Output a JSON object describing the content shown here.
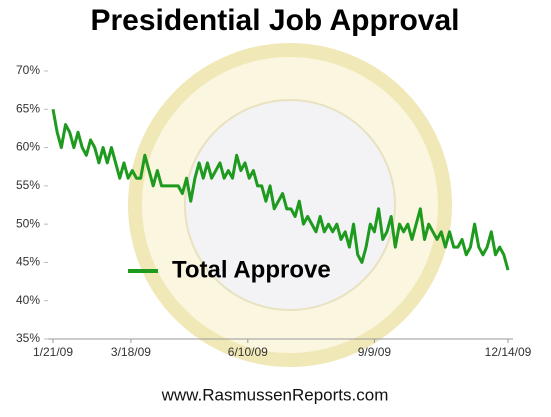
{
  "chart_data": {
    "type": "line",
    "title": "Presidential Job Approval",
    "footer": "www.RasmussenReports.com",
    "x": [
      "2009-01-21",
      "2009-01-24",
      "2009-01-27",
      "2009-01-30",
      "2009-02-02",
      "2009-02-05",
      "2009-02-08",
      "2009-02-11",
      "2009-02-14",
      "2009-02-17",
      "2009-02-20",
      "2009-02-23",
      "2009-02-26",
      "2009-03-01",
      "2009-03-04",
      "2009-03-07",
      "2009-03-10",
      "2009-03-13",
      "2009-03-16",
      "2009-03-19",
      "2009-03-22",
      "2009-03-25",
      "2009-03-28",
      "2009-03-31",
      "2009-04-03",
      "2009-04-06",
      "2009-04-09",
      "2009-04-12",
      "2009-04-15",
      "2009-04-18",
      "2009-04-21",
      "2009-04-24",
      "2009-04-27",
      "2009-04-30",
      "2009-05-03",
      "2009-05-06",
      "2009-05-09",
      "2009-05-12",
      "2009-05-15",
      "2009-05-18",
      "2009-05-21",
      "2009-05-24",
      "2009-05-27",
      "2009-05-30",
      "2009-06-02",
      "2009-06-05",
      "2009-06-08",
      "2009-06-11",
      "2009-06-14",
      "2009-06-17",
      "2009-06-20",
      "2009-06-23",
      "2009-06-26",
      "2009-06-29",
      "2009-07-02",
      "2009-07-05",
      "2009-07-08",
      "2009-07-11",
      "2009-07-14",
      "2009-07-17",
      "2009-07-20",
      "2009-07-23",
      "2009-07-26",
      "2009-07-29",
      "2009-08-01",
      "2009-08-04",
      "2009-08-07",
      "2009-08-10",
      "2009-08-13",
      "2009-08-16",
      "2009-08-19",
      "2009-08-22",
      "2009-08-25",
      "2009-08-28",
      "2009-08-31",
      "2009-09-03",
      "2009-09-06",
      "2009-09-09",
      "2009-09-12",
      "2009-09-15",
      "2009-09-18",
      "2009-09-21",
      "2009-09-24",
      "2009-09-27",
      "2009-09-30",
      "2009-10-03",
      "2009-10-06",
      "2009-10-09",
      "2009-10-12",
      "2009-10-15",
      "2009-10-18",
      "2009-10-21",
      "2009-10-24",
      "2009-10-27",
      "2009-10-30",
      "2009-11-02",
      "2009-11-05",
      "2009-11-08",
      "2009-11-11",
      "2009-11-14",
      "2009-11-17",
      "2009-11-20",
      "2009-11-23",
      "2009-11-26",
      "2009-11-29",
      "2009-12-02",
      "2009-12-05",
      "2009-12-08",
      "2009-12-11",
      "2009-12-14"
    ],
    "series": [
      {
        "name": "Total Approve",
        "color": "#1e9a1e",
        "values": [
          65,
          62,
          60,
          63,
          62,
          60,
          62,
          60,
          59,
          61,
          60,
          58,
          60,
          58,
          60,
          58,
          56,
          58,
          56,
          57,
          56,
          56,
          59,
          57,
          55,
          57,
          55,
          55,
          55,
          55,
          55,
          54,
          56,
          53,
          56,
          58,
          56,
          58,
          56,
          57,
          58,
          56,
          57,
          56,
          59,
          57,
          58,
          56,
          57,
          55,
          55,
          53,
          55,
          52,
          53,
          54,
          52,
          52,
          51,
          53,
          50,
          51,
          50,
          49,
          51,
          49,
          50,
          49,
          50,
          48,
          49,
          47,
          50,
          46,
          45,
          47,
          50,
          49,
          52,
          48,
          49,
          51,
          47,
          50,
          49,
          50,
          48,
          50,
          52,
          48,
          50,
          49,
          48,
          49,
          47,
          49,
          47,
          47,
          48,
          46,
          47,
          50,
          47,
          46,
          47,
          49,
          46,
          47,
          46,
          44
        ]
      }
    ],
    "xlim": [
      "2009-01-21",
      "2009-12-14"
    ],
    "xticks": [
      {
        "value": "2009-01-21",
        "label": "1/21/09"
      },
      {
        "value": "2009-03-18",
        "label": "3/18/09"
      },
      {
        "value": "2009-06-10",
        "label": "6/10/09"
      },
      {
        "value": "2009-09-09",
        "label": "9/9/09"
      },
      {
        "value": "2009-12-14",
        "label": "12/14/09"
      }
    ],
    "ylim": [
      35,
      70
    ],
    "yticks": [
      {
        "value": 35,
        "label": "35%"
      },
      {
        "value": 40,
        "label": "40%"
      },
      {
        "value": 45,
        "label": "45%"
      },
      {
        "value": 50,
        "label": "50%"
      },
      {
        "value": 55,
        "label": "55%"
      },
      {
        "value": 60,
        "label": "60%"
      },
      {
        "value": 65,
        "label": "65%"
      },
      {
        "value": 70,
        "label": "70%"
      }
    ],
    "grid": false
  }
}
